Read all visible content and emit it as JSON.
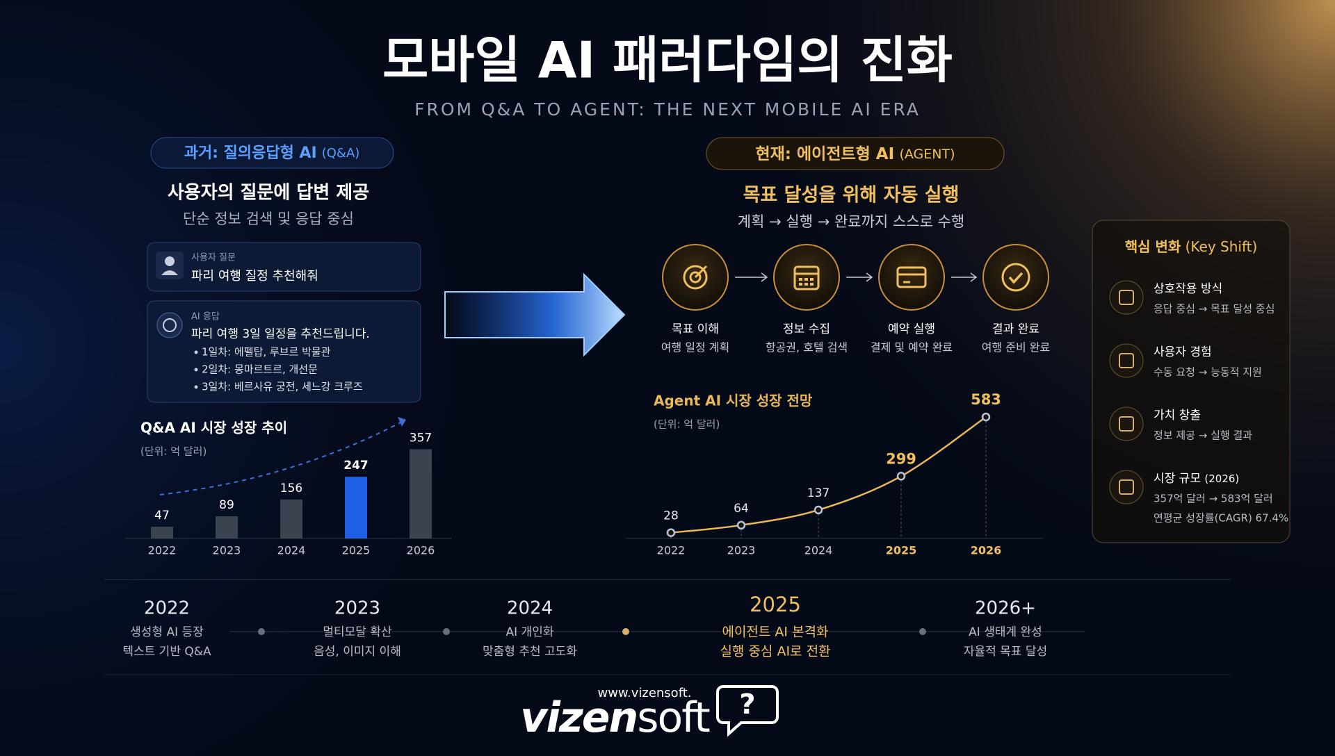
{
  "header": {
    "title": "모바일 AI 패러다임의 진화",
    "subtitle": "FROM Q&A TO AGENT: THE NEXT MOBILE AI ERA"
  },
  "past": {
    "badge": "과거: 질의응답형 AI",
    "badge_note": "(Q&A)",
    "heading": "사용자의 질문에 답변 제공",
    "subheading": "단순 정보 검색 및 응답 중심",
    "user_label": "사용자 질문",
    "user_text": "파리 여행 질정 추천해줘",
    "ai_label": "AI 응답",
    "ai_text": "파리 여행 3일 일정을 추천드립니다.",
    "ai_items": [
      "1일차: 에펠탑, 루브르 박물관",
      "2일차: 몽마르트르, 개선문",
      "3일차: 베르사유 궁전, 세느강 크루즈"
    ]
  },
  "present": {
    "badge": "현재: 에이전트형 AI",
    "badge_note": "(AGENT)",
    "heading": "목표 달성을 위해 자동 실행",
    "subheading": "계획 → 실행 → 완료까지 스스로 수행",
    "steps": [
      {
        "title": "목표 이해",
        "desc": "여행 일정 계획"
      },
      {
        "title": "정보 수집",
        "desc": "항공권, 호텔 검색"
      },
      {
        "title": "예약 실행",
        "desc": "결제 및 예약 완료"
      },
      {
        "title": "결과 완료",
        "desc": "여행 준비 완료"
      }
    ]
  },
  "key_shift": {
    "title": "핵심 변화",
    "title_note": "(Key Shift)",
    "items": [
      {
        "title": "상호작용 방식",
        "lines": [
          "응답 중심 → 목표 달성 중심"
        ]
      },
      {
        "title": "사용자 경험",
        "lines": [
          "수동 요청 → 능동적 지원"
        ]
      },
      {
        "title": "가치 창출",
        "lines": [
          "정보 제공 → 실행 결과"
        ]
      },
      {
        "title": "시장 규모",
        "title_note": "(2026)",
        "lines": [
          "357억 달러 → 583억 달러",
          "연평균 성장률(CAGR) 67.4%"
        ]
      }
    ]
  },
  "timeline": [
    {
      "year": "2022",
      "lines": [
        "생성형 AI 등장",
        "텍스트 기반 Q&A"
      ],
      "color": "#e6e9f0"
    },
    {
      "year": "2023",
      "lines": [
        "멀티모달 확산",
        "음성, 이미지 이해"
      ],
      "color": "#e6e9f0"
    },
    {
      "year": "2024",
      "lines": [
        "AI 개인화",
        "맞춤형 추천 고도화"
      ],
      "color": "#e6e9f0"
    },
    {
      "year": "2025",
      "lines": [
        "에이전트 AI 본격화",
        "실행 중심 AI로 전환"
      ],
      "color": "#f0c060"
    },
    {
      "year": "2026+",
      "lines": [
        "AI 생태계 완성",
        "자율적 목표 달성"
      ],
      "color": "#e6e9f0"
    }
  ],
  "footer": {
    "url": "www.vizensoft.",
    "brand": "vizen",
    "brand_light": "soft",
    "icon": "?"
  },
  "chart_data": [
    {
      "type": "bar",
      "title": "Q&A AI 시장 성장 추이",
      "subtitle": "(단위: 억 달러)",
      "categories": [
        "2022",
        "2023",
        "2024",
        "2025",
        "2026"
      ],
      "values": [
        47,
        89,
        156,
        247,
        357
      ],
      "colors": [
        "#3b4250",
        "#3b4250",
        "#3b4250",
        "#1f5fe6",
        "#3b4250"
      ]
    },
    {
      "type": "line",
      "title": "Agent AI 시장 성장 전망",
      "subtitle": "(단위: 억 달러)",
      "categories": [
        "2022",
        "2023",
        "2024",
        "2025",
        "2026"
      ],
      "values": [
        28,
        64,
        137,
        299,
        583
      ],
      "color": "#e8b85a",
      "value_colors": [
        "#e6e9f0",
        "#e6e9f0",
        "#e6e9f0",
        "#f0c060",
        "#f0c060"
      ]
    }
  ]
}
